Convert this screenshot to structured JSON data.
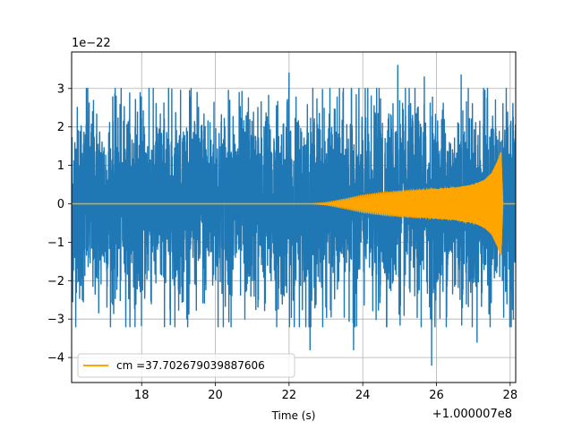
{
  "chart_data": {
    "type": "line",
    "title": "",
    "xlabel": "Time (s)",
    "ylabel": "",
    "x_offset_label": "+1.000007e8",
    "y_scale_label": "1e−22",
    "xlim": [
      16.1,
      28.15
    ],
    "ylim": [
      -4.65,
      3.95
    ],
    "x_ticks": [
      18,
      20,
      22,
      24,
      26,
      28
    ],
    "x_tick_labels": [
      "18",
      "20",
      "22",
      "24",
      "26",
      "28"
    ],
    "y_ticks": [
      -4,
      -3,
      -2,
      -1,
      0,
      1,
      2,
      3
    ],
    "y_tick_labels": [
      "−4",
      "−3",
      "−2",
      "−1",
      "0",
      "1",
      "2",
      "3"
    ],
    "grid": true,
    "legend_position": "lower-left",
    "series": [
      {
        "color": "#1f77b4",
        "kind": "noise",
        "x_range": [
          16.1,
          28.15
        ],
        "typical_amplitude": 1.65,
        "notable_peaks": [
          {
            "x": 24.95,
            "y": 3.6
          },
          {
            "x": 25.67,
            "y": 3.3
          },
          {
            "x": 25.87,
            "y": -4.2
          },
          {
            "x": 22.57,
            "y": -3.8
          },
          {
            "x": 23.75,
            "y": -3.8
          },
          {
            "x": 18.2,
            "y": 3.0
          },
          {
            "x": 22.0,
            "y": 3.4
          },
          {
            "x": 26.67,
            "y": 3.35
          },
          {
            "x": 27.1,
            "y": -3.6
          },
          {
            "x": 20.8,
            "y": -3.0
          },
          {
            "x": 16.5,
            "y": 3.0
          }
        ]
      },
      {
        "name": "cm =37.702679039887606",
        "color": "#ffa500",
        "kind": "chirp",
        "start_x": 22.6,
        "merger_x": 27.75,
        "end_x": 28.15,
        "peak_amplitude": 1.35,
        "envelope": [
          {
            "x": 22.6,
            "amp": 0.0
          },
          {
            "x": 23.0,
            "amp": 0.03
          },
          {
            "x": 23.5,
            "amp": 0.12
          },
          {
            "x": 24.0,
            "amp": 0.22
          },
          {
            "x": 24.5,
            "amp": 0.28
          },
          {
            "x": 25.0,
            "amp": 0.32
          },
          {
            "x": 25.5,
            "amp": 0.35
          },
          {
            "x": 26.0,
            "amp": 0.38
          },
          {
            "x": 26.5,
            "amp": 0.42
          },
          {
            "x": 27.0,
            "amp": 0.5
          },
          {
            "x": 27.3,
            "amp": 0.62
          },
          {
            "x": 27.5,
            "amp": 0.8
          },
          {
            "x": 27.65,
            "amp": 1.1
          },
          {
            "x": 27.75,
            "amp": 1.35
          },
          {
            "x": 27.8,
            "amp": 0.0
          }
        ]
      }
    ]
  }
}
